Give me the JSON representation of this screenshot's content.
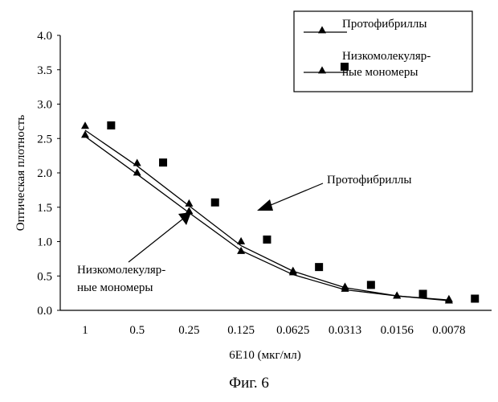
{
  "chart_data": {
    "type": "line",
    "categories": [
      "1",
      "0.5",
      "0.25",
      "0.125",
      "0.0625",
      "0.0313",
      "0.0156",
      "0.0078"
    ],
    "xlabel": "6E10 (мкг/мл)",
    "ylabel": "Оптическая плотность",
    "ylim": [
      0,
      4
    ],
    "yticks": [
      "0.0",
      "0.5",
      "1.0",
      "1.5",
      "2.0",
      "2.5",
      "3.0",
      "3.5",
      "4.0"
    ],
    "grid": false,
    "legend": {
      "position": "top-right"
    },
    "series": [
      {
        "name": "Протофибриллы",
        "marker": "triangle",
        "values": [
          2.68,
          2.14,
          1.55,
          1.0,
          0.57,
          0.34,
          0.21,
          0.16
        ],
        "fit": [
          2.62,
          2.1,
          1.52,
          0.94,
          0.57,
          0.33,
          0.21,
          0.15
        ]
      },
      {
        "name": "Низкомолекуляр-ные мономеры",
        "marker": "triangle",
        "values": [
          2.55,
          2.0,
          1.44,
          0.86,
          0.55,
          0.31,
          0.21,
          0.14
        ],
        "fit": [
          2.53,
          1.98,
          1.42,
          0.87,
          0.52,
          0.3,
          0.21,
          0.14
        ]
      },
      {
        "name": "",
        "marker": "square",
        "positions": [
          0.5,
          1.5,
          2.5,
          3.5,
          4.5,
          5.5,
          6.5,
          7.5
        ],
        "values": [
          2.69,
          2.15,
          1.57,
          1.03,
          0.63,
          0.37,
          0.24,
          0.17
        ]
      }
    ],
    "legend_entries": [
      {
        "lines": [
          "Протофибриллы"
        ]
      },
      {
        "lines": [
          "Низкомолекуляр-",
          "ные мономеры"
        ]
      }
    ],
    "annotations": [
      {
        "lines": [
          "Протофибриллы"
        ],
        "points_to": "series-1"
      },
      {
        "lines": [
          "Низкомолекуляр-",
          "ные мономеры"
        ],
        "points_to": "series-2"
      }
    ]
  },
  "caption": "Фиг. 6"
}
